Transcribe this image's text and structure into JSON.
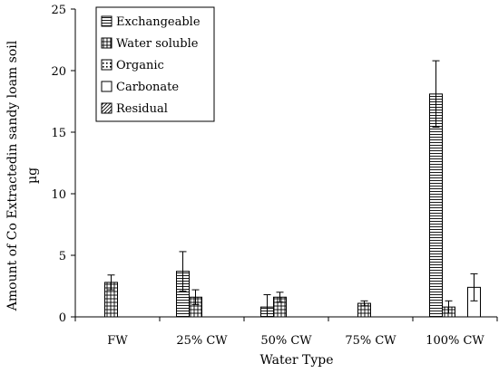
{
  "chart_data": {
    "type": "bar",
    "title": "",
    "xlabel": "Water Type",
    "ylabel_line1": "Amount of Co Extractedin sandy loam soil",
    "ylabel_line2": "µg",
    "categories": [
      "FW",
      "25% CW",
      "50% CW",
      "75% CW",
      "100% CW"
    ],
    "ylim": [
      0,
      25
    ],
    "yticks": [
      0,
      5,
      10,
      15,
      20,
      25
    ],
    "grid": false,
    "legend_position": "top-left",
    "series": [
      {
        "name": "Exchangeable",
        "pattern": "horizontal-lines",
        "values": [
          0,
          3.7,
          0.8,
          0,
          18.1
        ],
        "errors": [
          0,
          1.6,
          1.0,
          0,
          2.7
        ]
      },
      {
        "name": "Water soluble",
        "pattern": "grid",
        "values": [
          2.8,
          1.6,
          1.6,
          1.1,
          0.8
        ],
        "errors": [
          0.6,
          0.6,
          0.4,
          0.2,
          0.5
        ]
      },
      {
        "name": "Organic",
        "pattern": "dotted-grid",
        "values": [
          0,
          0,
          0,
          0,
          0
        ],
        "errors": [
          0,
          0,
          0,
          0,
          0
        ]
      },
      {
        "name": "Carbonate",
        "pattern": "empty",
        "values": [
          0,
          0,
          0,
          0,
          2.4
        ],
        "errors": [
          0,
          0,
          0,
          0,
          1.1
        ]
      },
      {
        "name": "Residual",
        "pattern": "diagonal",
        "values": [
          0,
          0,
          0,
          0,
          0
        ],
        "errors": [
          0,
          0,
          0,
          0,
          0
        ]
      }
    ]
  }
}
